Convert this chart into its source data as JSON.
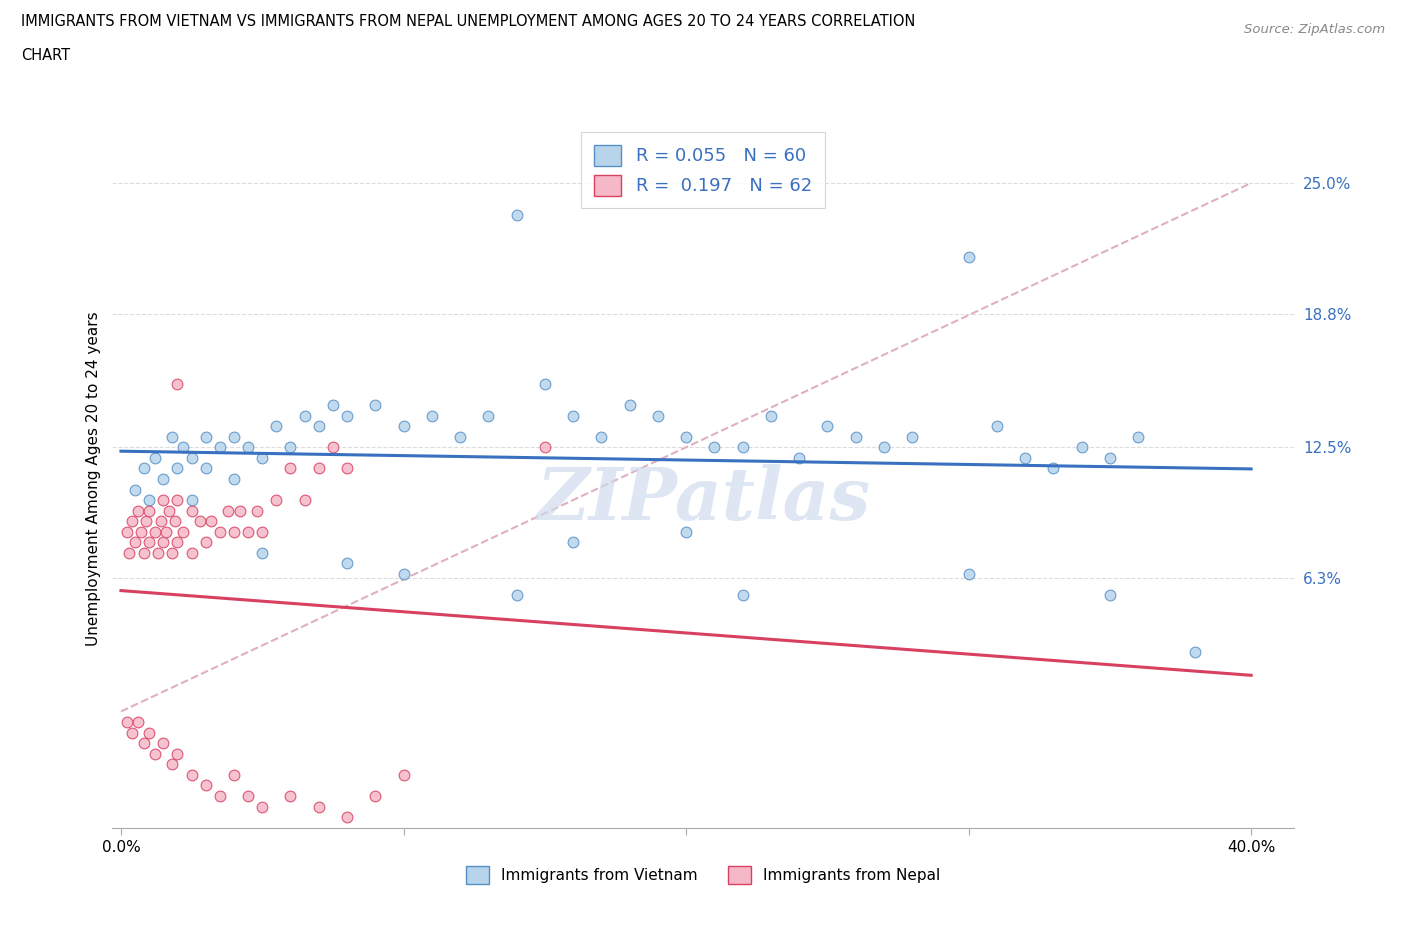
{
  "title_line1": "IMMIGRANTS FROM VIETNAM VS IMMIGRANTS FROM NEPAL UNEMPLOYMENT AMONG AGES 20 TO 24 YEARS CORRELATION",
  "title_line2": "CHART",
  "source": "Source: ZipAtlas.com",
  "ylabel": "Unemployment Among Ages 20 to 24 years",
  "xlabel_vietnam": "Immigrants from Vietnam",
  "xlabel_nepal": "Immigrants from Nepal",
  "xlim_min": -0.003,
  "xlim_max": 0.415,
  "ylim_min": -0.055,
  "ylim_max": 0.275,
  "xtick_positions": [
    0.0,
    0.4
  ],
  "xtick_labels": [
    "0.0%",
    "40.0%"
  ],
  "ytick_values": [
    0.063,
    0.125,
    0.188,
    0.25
  ],
  "ytick_labels": [
    "6.3%",
    "12.5%",
    "18.8%",
    "25.0%"
  ],
  "R_vietnam": "0.055",
  "N_vietnam": "60",
  "R_nepal": "0.197",
  "N_nepal": "62",
  "color_vietnam_fill": "#b8d4ea",
  "color_vietnam_edge": "#5590c8",
  "color_nepal_fill": "#f5b8c8",
  "color_nepal_edge": "#d84060",
  "trend_vietnam": "#3a70c0",
  "trend_nepal": "#d84060",
  "dashed_line_color": "#e0b0c0",
  "watermark": "ZIPatlas",
  "grid_color": "#dddddd",
  "viet_x": [
    0.005,
    0.008,
    0.01,
    0.012,
    0.015,
    0.018,
    0.02,
    0.022,
    0.025,
    0.025,
    0.03,
    0.03,
    0.035,
    0.04,
    0.04,
    0.045,
    0.05,
    0.055,
    0.06,
    0.065,
    0.07,
    0.075,
    0.08,
    0.09,
    0.1,
    0.11,
    0.12,
    0.13,
    0.14,
    0.15,
    0.16,
    0.17,
    0.18,
    0.19,
    0.2,
    0.21,
    0.22,
    0.23,
    0.24,
    0.25,
    0.26,
    0.27,
    0.28,
    0.3,
    0.31,
    0.32,
    0.33,
    0.34,
    0.35,
    0.36,
    0.05,
    0.08,
    0.1,
    0.14,
    0.16,
    0.2,
    0.22,
    0.3,
    0.35,
    0.38
  ],
  "viet_y": [
    0.105,
    0.115,
    0.1,
    0.12,
    0.11,
    0.13,
    0.115,
    0.125,
    0.1,
    0.12,
    0.115,
    0.13,
    0.125,
    0.11,
    0.13,
    0.125,
    0.12,
    0.135,
    0.125,
    0.14,
    0.135,
    0.145,
    0.14,
    0.145,
    0.135,
    0.14,
    0.13,
    0.14,
    0.235,
    0.155,
    0.14,
    0.13,
    0.145,
    0.14,
    0.13,
    0.125,
    0.125,
    0.14,
    0.12,
    0.135,
    0.13,
    0.125,
    0.13,
    0.215,
    0.135,
    0.12,
    0.115,
    0.125,
    0.12,
    0.13,
    0.075,
    0.07,
    0.065,
    0.055,
    0.08,
    0.085,
    0.055,
    0.065,
    0.055,
    0.028
  ],
  "nepal_x": [
    0.002,
    0.003,
    0.004,
    0.005,
    0.006,
    0.007,
    0.008,
    0.009,
    0.01,
    0.01,
    0.012,
    0.013,
    0.014,
    0.015,
    0.015,
    0.016,
    0.017,
    0.018,
    0.019,
    0.02,
    0.02,
    0.022,
    0.025,
    0.025,
    0.028,
    0.03,
    0.032,
    0.035,
    0.038,
    0.04,
    0.042,
    0.045,
    0.048,
    0.05,
    0.055,
    0.06,
    0.065,
    0.07,
    0.075,
    0.08,
    0.002,
    0.004,
    0.006,
    0.008,
    0.01,
    0.012,
    0.015,
    0.018,
    0.02,
    0.025,
    0.03,
    0.035,
    0.04,
    0.045,
    0.05,
    0.06,
    0.07,
    0.08,
    0.09,
    0.1,
    0.02,
    0.15
  ],
  "nepal_y": [
    0.085,
    0.075,
    0.09,
    0.08,
    0.095,
    0.085,
    0.075,
    0.09,
    0.08,
    0.095,
    0.085,
    0.075,
    0.09,
    0.08,
    0.1,
    0.085,
    0.095,
    0.075,
    0.09,
    0.08,
    0.1,
    0.085,
    0.095,
    0.075,
    0.09,
    0.08,
    0.09,
    0.085,
    0.095,
    0.085,
    0.095,
    0.085,
    0.095,
    0.085,
    0.1,
    0.115,
    0.1,
    0.115,
    0.125,
    0.115,
    -0.005,
    -0.01,
    -0.005,
    -0.015,
    -0.01,
    -0.02,
    -0.015,
    -0.025,
    -0.02,
    -0.03,
    -0.035,
    -0.04,
    -0.03,
    -0.04,
    -0.045,
    -0.04,
    -0.045,
    -0.05,
    -0.04,
    -0.03,
    0.155,
    0.125
  ]
}
